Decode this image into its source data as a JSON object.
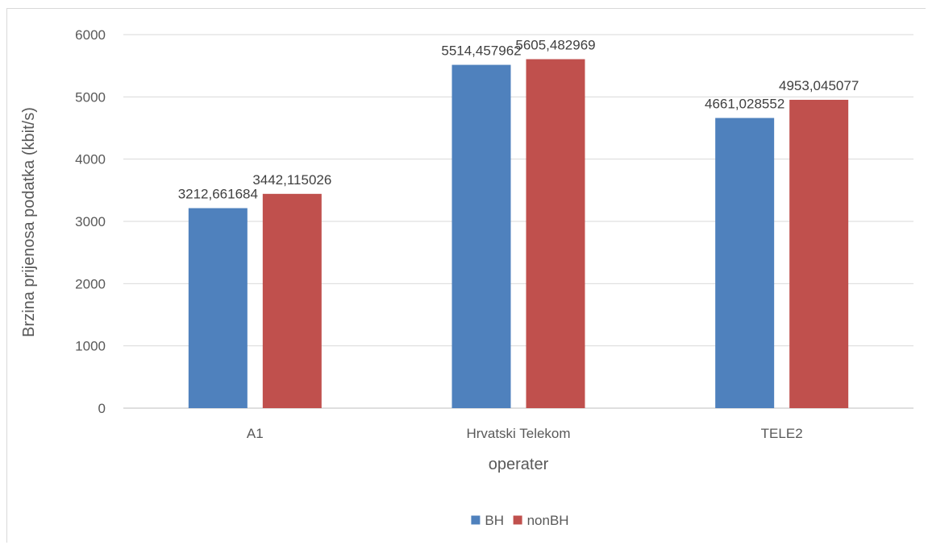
{
  "chart_data": {
    "type": "bar",
    "title": "",
    "xlabel": "operater",
    "ylabel": "Brzina prijenosa podatka (kbit/s)",
    "categories": [
      "A1",
      "Hrvatski Telekom",
      "TELE2"
    ],
    "series": [
      {
        "name": "BH",
        "values": [
          3212.661684,
          5514.457962,
          4661.028552
        ],
        "labels": [
          "3212,661684",
          "5514,457962",
          "4661,028552"
        ],
        "color": "#4f81bd"
      },
      {
        "name": "nonBH",
        "values": [
          3442.115026,
          5605.482969,
          4953.045077
        ],
        "labels": [
          "3442,115026",
          "5605,482969",
          "4953,045077"
        ],
        "color": "#c0504d"
      }
    ],
    "ylim": [
      0,
      6000
    ],
    "yticks": [
      "0",
      "1000",
      "2000",
      "3000",
      "4000",
      "5000",
      "6000"
    ],
    "grid": true,
    "legend_position": "bottom"
  }
}
